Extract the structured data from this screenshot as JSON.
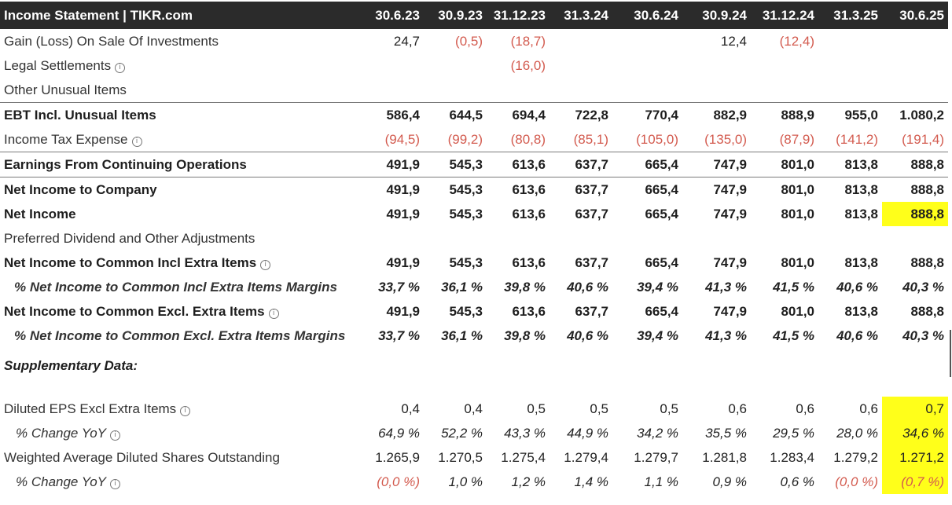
{
  "header": {
    "title": "Income Statement | TIKR.com",
    "periods": [
      "30.6.23",
      "30.9.23",
      "31.12.23",
      "31.3.24",
      "30.6.24",
      "30.9.24",
      "31.12.24",
      "31.3.25",
      "30.6.25"
    ]
  },
  "rows": [
    {
      "label": "Gain (Loss) On Sale Of Investments",
      "values": [
        "24,7",
        "(0,5)",
        "(18,7)",
        "",
        "",
        "12,4",
        "(12,4)",
        "",
        ""
      ]
    },
    {
      "label": "Legal Settlements",
      "values": [
        "",
        "",
        "(16,0)",
        "",
        "",
        "",
        "",
        "",
        ""
      ]
    },
    {
      "label": "Other Unusual Items",
      "values": [
        "",
        "",
        "",
        "",
        "",
        "",
        "",
        "",
        ""
      ]
    },
    {
      "label": "EBT Incl. Unusual Items",
      "values": [
        "586,4",
        "644,5",
        "694,4",
        "722,8",
        "770,4",
        "882,9",
        "888,9",
        "955,0",
        "1.080,2"
      ]
    },
    {
      "label": "Income Tax Expense",
      "values": [
        "(94,5)",
        "(99,2)",
        "(80,8)",
        "(85,1)",
        "(105,0)",
        "(135,0)",
        "(87,9)",
        "(141,2)",
        "(191,4)"
      ]
    },
    {
      "label": "Earnings From Continuing Operations",
      "values": [
        "491,9",
        "545,3",
        "613,6",
        "637,7",
        "665,4",
        "747,9",
        "801,0",
        "813,8",
        "888,8"
      ]
    },
    {
      "label": "Net Income to Company",
      "values": [
        "491,9",
        "545,3",
        "613,6",
        "637,7",
        "665,4",
        "747,9",
        "801,0",
        "813,8",
        "888,8"
      ]
    },
    {
      "label": "Net Income",
      "values": [
        "491,9",
        "545,3",
        "613,6",
        "637,7",
        "665,4",
        "747,9",
        "801,0",
        "813,8",
        "888,8"
      ]
    },
    {
      "label": "Preferred Dividend and Other Adjustments",
      "values": [
        "",
        "",
        "",
        "",
        "",
        "",
        "",
        "",
        ""
      ]
    },
    {
      "label": "Net Income to Common Incl Extra Items",
      "values": [
        "491,9",
        "545,3",
        "613,6",
        "637,7",
        "665,4",
        "747,9",
        "801,0",
        "813,8",
        "888,8"
      ]
    },
    {
      "label": "% Net Income to Common Incl Extra Items Margins",
      "values": [
        "33,7 %",
        "36,1 %",
        "39,8 %",
        "40,6 %",
        "39,4 %",
        "41,3 %",
        "41,5 %",
        "40,6 %",
        "40,3 %"
      ]
    },
    {
      "label": "Net Income to Common Excl. Extra Items",
      "values": [
        "491,9",
        "545,3",
        "613,6",
        "637,7",
        "665,4",
        "747,9",
        "801,0",
        "813,8",
        "888,8"
      ]
    },
    {
      "label": "% Net Income to Common Excl. Extra Items Margins",
      "values": [
        "33,7 %",
        "36,1 %",
        "39,8 %",
        "40,6 %",
        "39,4 %",
        "41,3 %",
        "41,5 %",
        "40,6 %",
        "40,3 %"
      ]
    }
  ],
  "supplementary": {
    "title": "Supplementary Data:",
    "rows": [
      {
        "label": "Diluted EPS Excl Extra Items",
        "values": [
          "0,4",
          "0,4",
          "0,5",
          "0,5",
          "0,5",
          "0,6",
          "0,6",
          "0,6",
          "0,7"
        ]
      },
      {
        "label": "% Change YoY",
        "values": [
          "64,9 %",
          "52,2 %",
          "43,3 %",
          "44,9 %",
          "34,2 %",
          "35,5 %",
          "29,5 %",
          "28,0 %",
          "34,6 %"
        ]
      },
      {
        "label": "Weighted Average Diluted Shares Outstanding",
        "values": [
          "1.265,9",
          "1.270,5",
          "1.275,4",
          "1.279,4",
          "1.279,7",
          "1.281,8",
          "1.283,4",
          "1.279,2",
          "1.271,2"
        ]
      },
      {
        "label": "% Change YoY",
        "values": [
          "(0,0 %)",
          "1,0 %",
          "1,2 %",
          "1,4 %",
          "1,1 %",
          "0,9 %",
          "0,6 %",
          "(0,0 %)",
          "(0,7 %)"
        ]
      }
    ]
  },
  "colors": {
    "header_bg": "#2b2b2b",
    "negative": "#d35b4f",
    "highlight": "#ffff1a"
  },
  "icons": {
    "info": "info-circle-icon"
  }
}
